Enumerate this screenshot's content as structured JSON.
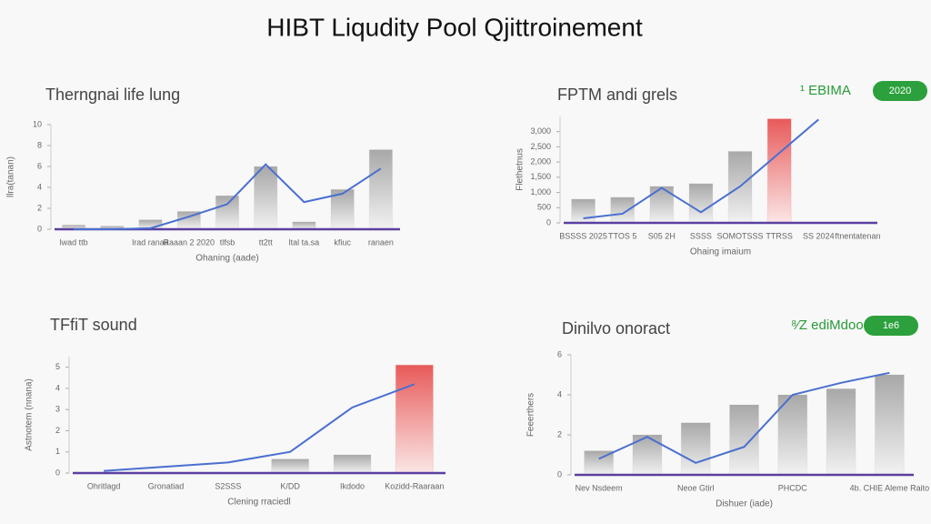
{
  "title": "HIBT Liqudity Pool Qjittroinement",
  "chart_data": [
    {
      "type": "bar",
      "title": "Therngnai life lung",
      "x_label": "Ohaning (aade)",
      "y_label": "llra(tanan)",
      "categories": [
        "lwad ttb",
        null,
        "lrad ranaa",
        "Raaan 2 2020",
        "tlfsb",
        "tt2tt",
        "ltal ta.sa",
        "kfiuc",
        "ranaen"
      ],
      "ylim": [
        0,
        10
      ],
      "yticks": [
        0,
        2,
        4,
        6,
        8,
        10
      ],
      "axis_color": "#5a3fa0",
      "series": [
        {
          "type": "bar",
          "color": "#b5b5b5",
          "colors": [
            "#b5b5b5",
            "#b5b5b5",
            "#b5b5b5",
            "#b5b5b5",
            "#b5b5b5",
            "#b5b5b5",
            "#b5b5b5",
            "#b5b5b5",
            "#b5b5b5"
          ],
          "values": [
            0.4,
            0.3,
            0.9,
            1.7,
            3.2,
            6,
            0.7,
            3.8,
            7.6
          ]
        },
        {
          "type": "line",
          "color": "#4a6fd0",
          "values": [
            0,
            0,
            0.1,
            1.2,
            2.4,
            6.2,
            2.6,
            3.4,
            5.8
          ]
        }
      ]
    },
    {
      "type": "bar",
      "title": "FPTM andi grels",
      "badge": "¹ EBIMA",
      "tag": "2020",
      "x_label": "Ohaing imaium",
      "y_label": "Flethetnus",
      "categories": [
        "BSSSS 2025",
        "TTOS 5",
        "S05 2H",
        "SSSS",
        "SOMOTSSS",
        "TTRSS",
        "SS 2024",
        "ftnentatenan"
      ],
      "ylim": [
        0,
        3500
      ],
      "yticks": [
        0,
        500,
        {
          "value": 1000,
          "label": "1,000"
        },
        {
          "value": 1500,
          "label": "1,500"
        },
        {
          "value": 2000,
          "label": "2,000"
        },
        {
          "value": 2500,
          "label": "2,500"
        },
        {
          "value": 3000,
          "label": "3,000"
        }
      ],
      "axis_color": "#5a3fa0",
      "series": [
        {
          "type": "bar",
          "color": "#b5b5b5",
          "colors": [
            "#b5b5b5",
            "#b5b5b5",
            "#b5b5b5",
            "#b5b5b5",
            "#b5b5b5",
            "#e85a5a",
            "#b5b5b5",
            "#b5b5b5"
          ],
          "values": [
            780,
            840,
            1200,
            1290,
            2350,
            3420,
            null,
            null
          ]
        },
        {
          "type": "line",
          "color": "#4a6fd0",
          "values": [
            150,
            300,
            1150,
            350,
            1200,
            2300,
            3400,
            null
          ]
        }
      ]
    },
    {
      "type": "bar",
      "title": "TFfiT sound",
      "x_label": "Clening rraciedl",
      "y_label": "Astnotem (nnana)",
      "categories": [
        "Ohritlagd",
        "Gronatiad",
        "S2SSS",
        "K/DD",
        "Ikdodo",
        "Kozidd-Raaraan"
      ],
      "ylim": [
        0,
        5.5
      ],
      "yticks": [
        0,
        1,
        2,
        3,
        4,
        5
      ],
      "axis_color": "#5a3fa0",
      "series": [
        {
          "type": "bar",
          "color": "#b5b5b5",
          "colors": [
            "#b5b5b5",
            "#b5b5b5",
            "#b5b5b5",
            "#b5b5b5",
            "#b5b5b5",
            "#e85a5a"
          ],
          "values": [
            null,
            null,
            null,
            0.66,
            0.86,
            5.1
          ]
        },
        {
          "type": "line",
          "color": "#4a6fd0",
          "values": [
            0.1,
            0.3,
            0.5,
            1.0,
            3.1,
            4.2
          ]
        }
      ]
    },
    {
      "type": "bar",
      "title": "Dinilvo onoract",
      "badge": "⁸⁄Z ediMdoo",
      "tag": "1e6",
      "x_label": "Dishuer (iade)",
      "y_label": "Feeerthers",
      "categories": [
        "Nev Nsdeem",
        null,
        "Neoe Gtirl",
        null,
        "PHCDC",
        null,
        "4b. CHIE Aleme Raito"
      ],
      "ylim": [
        0,
        6
      ],
      "yticks": [
        0,
        2,
        4,
        6
      ],
      "axis_color": "#5a3fa0",
      "series": [
        {
          "type": "bar",
          "color": "#b5b5b5",
          "colors": [
            "#b5b5b5",
            "#b5b5b5",
            "#b5b5b5",
            "#b5b5b5",
            "#b5b5b5",
            "#b5b5b5",
            "#b5b5b5"
          ],
          "values": [
            1.2,
            2.0,
            2.6,
            3.5,
            4.0,
            4.3,
            5.0
          ]
        },
        {
          "type": "line",
          "color": "#4a6fd0",
          "values": [
            0.8,
            1.9,
            0.6,
            1.4,
            4.0,
            4.6,
            5.1
          ]
        }
      ]
    }
  ]
}
